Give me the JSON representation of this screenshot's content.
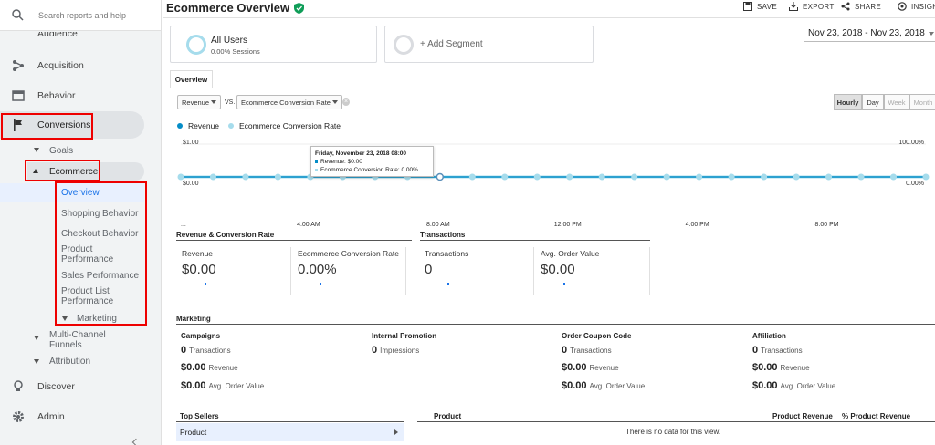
{
  "sidebar": {
    "search_placeholder": "Search reports and help",
    "audience": "Audience",
    "acquisition": "Acquisition",
    "behavior": "Behavior",
    "conversions": "Conversions",
    "goals": "Goals",
    "ecommerce": "Ecommerce",
    "ecommerce_items": [
      "Overview",
      "Shopping Behavior",
      "Checkout Behavior",
      "Product Performance",
      "Sales Performance",
      "Product List Performance"
    ],
    "marketing": "Marketing",
    "multichannel": "Multi-Channel Funnels",
    "attribution": "Attribution",
    "discover": "Discover",
    "admin": "Admin"
  },
  "header": {
    "title": "Ecommerce Overview",
    "save": "SAVE",
    "export": "EXPORT",
    "share": "SHARE",
    "insights": "INSIGHTS"
  },
  "segments": {
    "all_users": "All Users",
    "sessions": "0.00% Sessions",
    "add": "+ Add Segment"
  },
  "date_range": "Nov 23, 2018 - Nov 23, 2018",
  "tab_overview": "Overview",
  "controls": {
    "metric1": "Revenue",
    "vs": "VS.",
    "metric2": "Ecommerce Conversion Rate",
    "granularity": [
      "Hourly",
      "Day",
      "Week",
      "Month"
    ]
  },
  "legend": {
    "revenue": "Revenue",
    "conv_rate": "Ecommerce Conversion Rate"
  },
  "chart_data": {
    "type": "line",
    "x": [
      "12:00 AM",
      "1:00 AM",
      "2:00 AM",
      "3:00 AM",
      "4:00 AM",
      "5:00 AM",
      "6:00 AM",
      "7:00 AM",
      "8:00 AM",
      "9:00 AM",
      "10:00 AM",
      "11:00 AM",
      "12:00 PM",
      "1:00 PM",
      "2:00 PM",
      "3:00 PM",
      "4:00 PM",
      "5:00 PM",
      "6:00 PM",
      "7:00 PM",
      "8:00 PM",
      "9:00 PM",
      "10:00 PM",
      "11:00 PM"
    ],
    "x_tick_labels": [
      "...",
      "4:00 AM",
      "8:00 AM",
      "12:00 PM",
      "4:00 PM",
      "8:00 PM"
    ],
    "series": [
      {
        "name": "Revenue",
        "color": "#058dc7",
        "values": [
          0,
          0,
          0,
          0,
          0,
          0,
          0,
          0,
          0,
          0,
          0,
          0,
          0,
          0,
          0,
          0,
          0,
          0,
          0,
          0,
          0,
          0,
          0,
          0
        ]
      },
      {
        "name": "Ecommerce Conversion Rate",
        "color": "#a6dcec",
        "values": [
          0,
          0,
          0,
          0,
          0,
          0,
          0,
          0,
          0,
          0,
          0,
          0,
          0,
          0,
          0,
          0,
          0,
          0,
          0,
          0,
          0,
          0,
          0,
          0
        ]
      }
    ],
    "y_left_labels": [
      "$1.00",
      "$0.00"
    ],
    "y_right_labels": [
      "100.00%",
      "0.00%"
    ],
    "tooltip": {
      "title": "Friday, November 23, 2018 08:00",
      "line1": "Revenue: $0.00",
      "line2": "Ecommerce Conversion Rate: 0.00%"
    }
  },
  "summary": {
    "rev_title": "Revenue & Conversion Rate",
    "trans_title": "Transactions",
    "metrics": [
      {
        "name": "Revenue",
        "value": "$0.00"
      },
      {
        "name": "Ecommerce Conversion Rate",
        "value": "0.00%"
      },
      {
        "name": "Transactions",
        "value": "0"
      },
      {
        "name": "Avg. Order Value",
        "value": "$0.00"
      }
    ]
  },
  "marketing": {
    "title": "Marketing",
    "columns": [
      {
        "head": "Campaigns",
        "rows": [
          {
            "v": "0",
            "l": "Transactions"
          },
          {
            "v": "$0.00",
            "l": "Revenue"
          },
          {
            "v": "$0.00",
            "l": "Avg. Order Value"
          }
        ]
      },
      {
        "head": "Internal Promotion",
        "rows": [
          {
            "v": "0",
            "l": "Impressions"
          }
        ]
      },
      {
        "head": "Order Coupon Code",
        "rows": [
          {
            "v": "0",
            "l": "Transactions"
          },
          {
            "v": "$0.00",
            "l": "Revenue"
          },
          {
            "v": "$0.00",
            "l": "Avg. Order Value"
          }
        ]
      },
      {
        "head": "Affiliation",
        "rows": [
          {
            "v": "0",
            "l": "Transactions"
          },
          {
            "v": "$0.00",
            "l": "Revenue"
          },
          {
            "v": "$0.00",
            "l": "Avg. Order Value"
          }
        ]
      }
    ]
  },
  "top_sellers": {
    "title": "Top Sellers",
    "item": "Product",
    "col_product": "Product",
    "col_revenue": "Product Revenue",
    "col_pct": "% Product Revenue",
    "empty": "There is no data for this view."
  }
}
